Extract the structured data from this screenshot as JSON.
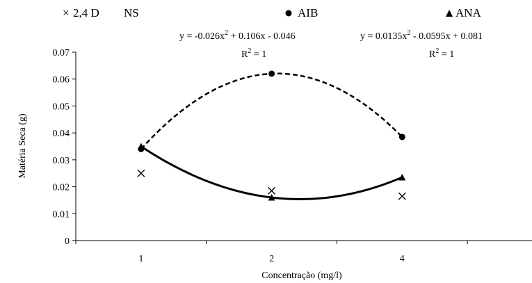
{
  "chart_data": {
    "type": "scatter",
    "x_categories": [
      "1",
      "2",
      "4"
    ],
    "xlabel": "Concentração (mg/l)",
    "ylabel": "Matéria Seca (g)",
    "ylim": [
      0,
      0.07
    ],
    "yticks": [
      "0",
      "0.01",
      "0.02",
      "0.03",
      "0.04",
      "0.05",
      "0.06",
      "0.07"
    ],
    "grid": false,
    "legend_position": "top",
    "series": [
      {
        "name": "2,4 D",
        "marker": "x",
        "note": "NS",
        "values": [
          0.025,
          0.0185,
          0.0165
        ],
        "trendline": null
      },
      {
        "name": "AIB",
        "marker": "circle",
        "values": [
          0.034,
          0.062,
          0.0385
        ],
        "trendline": {
          "style": "dashed",
          "equation": "y = -0.026x",
          "equation_exp": "2",
          "equation_rest": " + 0.106x - 0.046",
          "r2_label": "R",
          "r2_exp": "2",
          "r2_rest": " = 1"
        }
      },
      {
        "name": "ANA",
        "marker": "triangle",
        "values": [
          0.035,
          0.016,
          0.0235
        ],
        "trendline": {
          "style": "solid",
          "equation": "y = 0.0135x",
          "equation_exp": "2",
          "equation_rest": " - 0.0595x + 0.081",
          "r2_label": "R",
          "r2_exp": "2",
          "r2_rest": " = 1"
        }
      }
    ]
  }
}
